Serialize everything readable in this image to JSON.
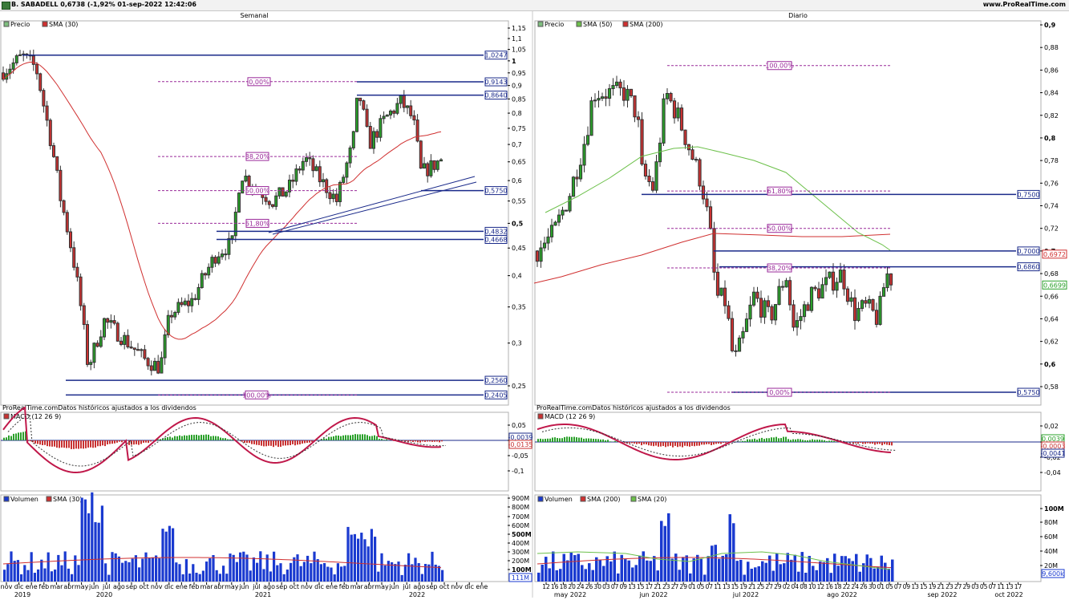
{
  "header": {
    "title": "B. SABADELL 0,6738 (-1,92% 01-sep-2022 12:42:06",
    "site": "www.ProRealTime.com",
    "icon": "chart-app-icon"
  },
  "colors": {
    "up": "#2aa02a",
    "down": "#c83232",
    "sma_red": "#d03030",
    "sma_green": "#6cc04a",
    "level_line": "#1a2a8a",
    "fib_line": "#9a2a9a",
    "volume": "#1a3ad0",
    "macd_line": "#c0184a"
  },
  "weekly": {
    "panel_title": "Semanal",
    "legend": [
      "Precio",
      "SMA (30)"
    ],
    "source_note": "ProRealTime.comDatos históricos ajustados a los dividendos",
    "y_ticks": [
      "1,15",
      "1,1",
      "1,05",
      "1",
      "0,95",
      "0,9",
      "0,85",
      "0,8",
      "0,75",
      "0,7",
      "0,65",
      "0,6",
      "0,55",
      "0,5",
      "0,45",
      "0,4",
      "0,35",
      "0,3",
      "0,25"
    ],
    "levels": [
      "1,0247",
      "0,9143",
      "0,8640",
      "0,5750",
      "0,4832",
      "0,4668",
      "0,2560",
      "0,2405"
    ],
    "fib_labels": [
      "0,00%",
      "38,20%",
      "50,00%",
      "61,80%",
      "100,00%"
    ],
    "macd": {
      "legend": "MACD (12 26 9)",
      "ticks": [
        "0,05",
        "0",
        "-0,05",
        "-0,1"
      ],
      "values": [
        "-0,0039",
        "-0,0135"
      ]
    },
    "volume": {
      "legend": [
        "Volumen",
        "SMA (30)"
      ],
      "ticks": [
        "900M",
        "800M",
        "700M",
        "600M",
        "500M",
        "400M",
        "300M",
        "200M",
        "100M"
      ],
      "value": "111M"
    },
    "x_labels": [
      "nov",
      "dic",
      "ene",
      "feb",
      "mar",
      "abr",
      "may",
      "jun",
      "jul",
      "ago",
      "sep",
      "oct",
      "nov",
      "dic",
      "ene",
      "feb",
      "mar",
      "abr",
      "may",
      "jun",
      "jul",
      "ago",
      "sep",
      "oct",
      "nov",
      "dic",
      "ene",
      "feb",
      "mar",
      "abr",
      "may",
      "jun",
      "jul",
      "ago",
      "sep",
      "oct",
      "nov",
      "dic",
      "ene"
    ],
    "years": [
      "2019",
      "2020",
      "2021",
      "2022"
    ]
  },
  "daily": {
    "panel_title": "Diario",
    "legend": [
      "Precio",
      "SMA (50)",
      "SMA (200)"
    ],
    "source_note": "ProRealTime.comDatos históricos ajustados a los dividendos",
    "y_ticks": [
      "0,9",
      "0,88",
      "0,86",
      "0,84",
      "0,82",
      "0,8",
      "0,78",
      "0,76",
      "0,74",
      "0,72",
      "0,7",
      "0,68",
      "0,66",
      "0,64",
      "0,62",
      "0,6",
      "0,58"
    ],
    "levels": [
      "0,7500",
      "0,7000",
      "0,6860",
      "0,5750"
    ],
    "price_tags": [
      "0,6972",
      "0,6699"
    ],
    "fib_labels": [
      "100,00%",
      "61,80%",
      "50,00%",
      "38,20%",
      "0,00%"
    ],
    "macd": {
      "legend": "MACD (12 26 9)",
      "ticks": [
        "0,02",
        "0",
        "-0,02",
        "-0,04"
      ],
      "values": [
        "0,0039",
        "-0,0003",
        "-0,0041"
      ]
    },
    "volume": {
      "legend": [
        "Volumen",
        "SMA (200)",
        "SMA (20)"
      ],
      "ticks": [
        "100M",
        "80M",
        "60M",
        "40M",
        "20M"
      ],
      "value": "9,600k"
    },
    "x_labels": [
      "12",
      "16",
      "18",
      "20",
      "24",
      "26",
      "30",
      "03",
      "07",
      "09",
      "13",
      "15",
      "17",
      "21",
      "23",
      "27",
      "29",
      "01",
      "05",
      "07",
      "11",
      "13",
      "15",
      "19",
      "21",
      "25",
      "27",
      "29",
      "02",
      "04",
      "08",
      "10",
      "12",
      "16",
      "18",
      "22",
      "24",
      "26",
      "30",
      "01",
      "05",
      "07",
      "09",
      "13",
      "15",
      "19",
      "21",
      "23",
      "27",
      "29",
      "03",
      "05",
      "07",
      "11",
      "13",
      "17"
    ],
    "months": [
      "may 2022",
      "jun 2022",
      "jul 2022",
      "ago 2022",
      "sep 2022",
      "oct 2022"
    ]
  }
}
